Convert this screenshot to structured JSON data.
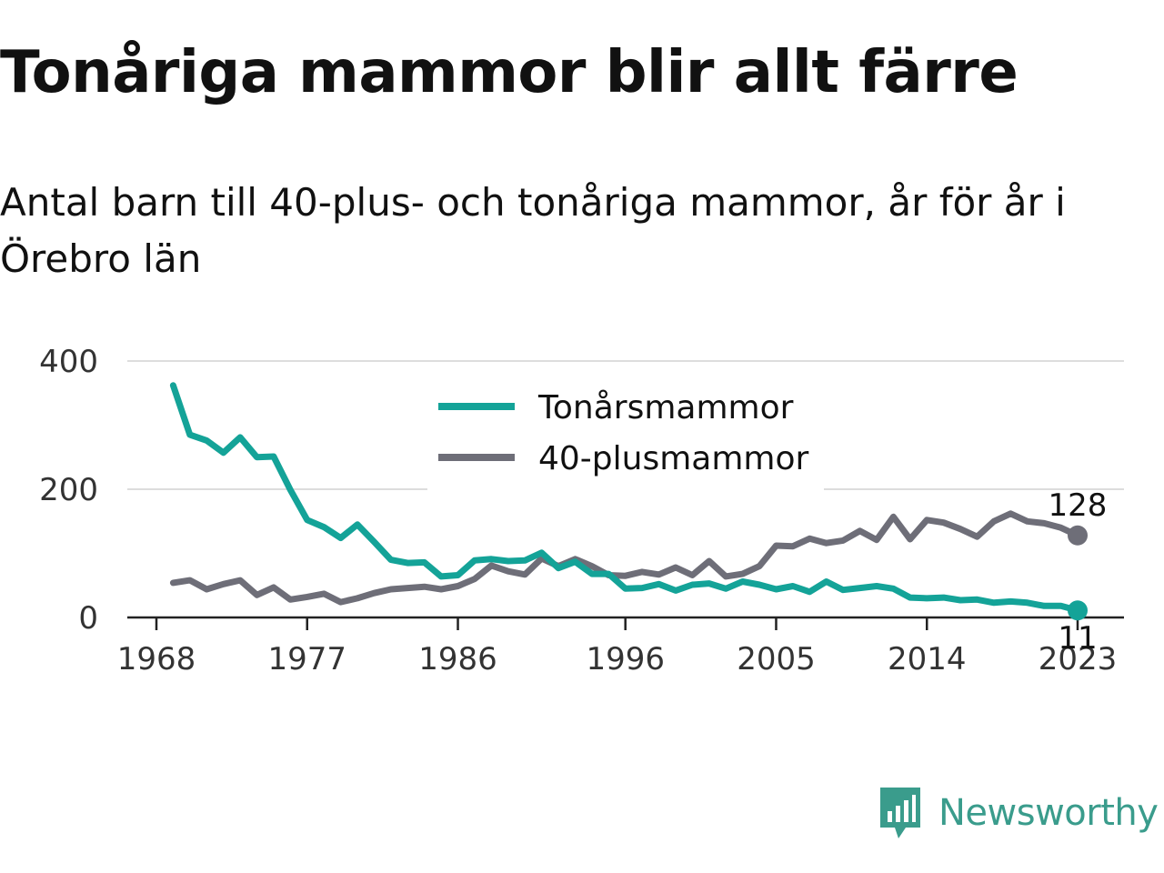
{
  "title": "Tonåriga mammor blir allt färre",
  "subtitle": "Antal barn till 40-plus- och tonåriga mammor, år för år i Örebro län",
  "brand": "Newsworthy",
  "colors": {
    "teen": "#14a398",
    "forty": "#6e6e78",
    "grid": "#dddddd",
    "brand": "#3a9c8c"
  },
  "chart_data": {
    "type": "line",
    "x_ticks": [
      "1968",
      "1977",
      "1986",
      "1996",
      "2005",
      "2014",
      "2023"
    ],
    "y_ticks": [
      "0",
      "200",
      "400"
    ],
    "ylim": [
      0,
      400
    ],
    "xlim": [
      1968,
      2023
    ],
    "grid": true,
    "legend_position": "top-center",
    "x": [
      1969,
      1970,
      1971,
      1972,
      1973,
      1974,
      1975,
      1976,
      1977,
      1978,
      1979,
      1980,
      1981,
      1982,
      1983,
      1984,
      1985,
      1986,
      1987,
      1988,
      1989,
      1990,
      1991,
      1992,
      1993,
      1994,
      1995,
      1996,
      1997,
      1998,
      1999,
      2000,
      2001,
      2002,
      2003,
      2004,
      2005,
      2006,
      2007,
      2008,
      2009,
      2010,
      2011,
      2012,
      2013,
      2014,
      2015,
      2016,
      2017,
      2018,
      2019,
      2020,
      2021,
      2022,
      2023
    ],
    "series": [
      {
        "name": "Tonårsmammor",
        "color": "#14a398",
        "end_label": "11",
        "values": [
          362,
          285,
          276,
          257,
          281,
          250,
          251,
          199,
          152,
          141,
          124,
          145,
          118,
          90,
          85,
          86,
          64,
          66,
          89,
          91,
          88,
          89,
          101,
          77,
          87,
          68,
          68,
          45,
          46,
          52,
          42,
          51,
          53,
          45,
          56,
          51,
          44,
          49,
          40,
          56,
          43,
          46,
          49,
          45,
          31,
          30,
          31,
          27,
          28,
          23,
          25,
          23,
          18,
          18,
          11
        ]
      },
      {
        "name": "40-plusmammor",
        "color": "#6e6e78",
        "end_label": "128",
        "values": [
          54,
          58,
          44,
          52,
          58,
          35,
          47,
          28,
          32,
          37,
          24,
          30,
          38,
          44,
          46,
          48,
          44,
          49,
          60,
          81,
          72,
          67,
          92,
          80,
          91,
          80,
          66,
          65,
          71,
          67,
          78,
          66,
          88,
          64,
          68,
          80,
          112,
          111,
          123,
          116,
          120,
          135,
          121,
          157,
          122,
          152,
          148,
          138,
          126,
          150,
          162,
          150,
          147,
          140,
          128
        ]
      }
    ]
  }
}
